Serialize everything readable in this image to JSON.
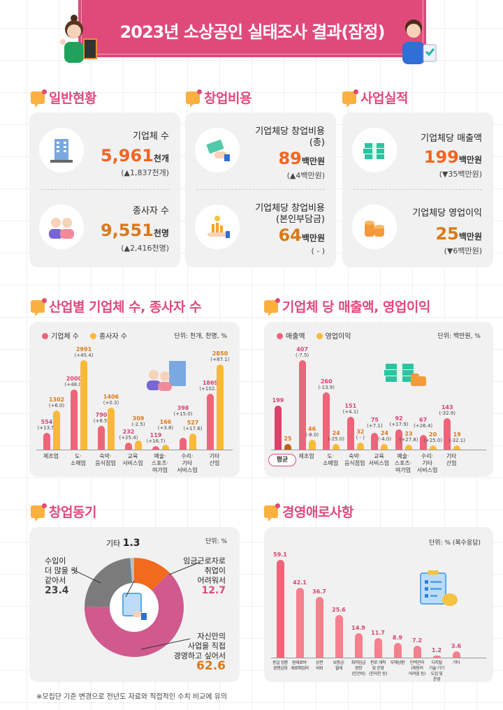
{
  "header": {
    "title": "2023년 소상공인 실태조사 결과(잠정)"
  },
  "colors": {
    "brand": "#e04a7a",
    "accent_orange": "#f26522",
    "accent_dark_orange": "#d9791a",
    "bar_pink": "#f0647a",
    "bar_yellow": "#fbb93a"
  },
  "general": {
    "title": "일반현황",
    "items": [
      {
        "label": "기업체 수",
        "value": "5,961",
        "unit": "천개",
        "change": "(▲1,837천개)",
        "icon": "office-building-icon"
      },
      {
        "label": "종사자 수",
        "value": "9,551",
        "unit": "천명",
        "change": "(▲2,416천명)",
        "icon": "people-icon"
      }
    ]
  },
  "startup_cost": {
    "title": "창업비용",
    "items": [
      {
        "label": "기업체당 창업비용\n(총)",
        "value": "89",
        "unit": "백만원",
        "change": "(▲4백만원)",
        "icon": "money-hand-icon"
      },
      {
        "label": "기업체당 창업비용\n(본인부담금)",
        "value": "64",
        "unit": "백만원",
        "change": "( - )",
        "icon": "coins-hand-icon"
      }
    ]
  },
  "performance": {
    "title": "사업실적",
    "items": [
      {
        "label": "기업체당 매출액",
        "value": "199",
        "unit": "백만원",
        "change": "(▼35백만원)",
        "icon": "cash-stack-icon"
      },
      {
        "label": "기업체당 영업이익",
        "value": "25",
        "unit": "백만원",
        "change": "(▼6백만원)",
        "icon": "coin-stack-icon"
      }
    ]
  },
  "chart_data": [
    {
      "type": "bar",
      "title": "산업별 기업체 수, 종사자 수",
      "unit_note": "단위: 천개, 천명, %",
      "legend_position": "top-left",
      "categories": [
        "제조업",
        "도·\n소매업",
        "숙박·\n음식점업",
        "교육\n서비스업",
        "예술·\n스포츠·\n여가업",
        "수리·\n기타\n서비스업",
        "기타\n산업"
      ],
      "series": [
        {
          "name": "기업체 수",
          "color": "#f0647a",
          "values": [
            554,
            2000,
            790,
            232,
            119,
            398,
            1869
          ],
          "changes": [
            "(+13.5)",
            "(+48.0)",
            "(+8.5)",
            "(+25.4)",
            "(+16.7)",
            "(+15.0)",
            "(+102.3)"
          ]
        },
        {
          "name": "종사자 수",
          "color": "#fbb93a",
          "values": [
            1302,
            2991,
            1406,
            309,
            166,
            527,
            2850
          ],
          "changes": [
            "(+6.0)",
            "(+45.4)",
            "(+0.3)",
            "(-2.5)",
            "(+3.8)",
            "(+17.6)",
            "(+87.1)"
          ]
        }
      ]
    },
    {
      "type": "bar",
      "title": "기업체 당 매출액, 영업이익",
      "unit_note": "단위: 백만원, %",
      "legend_position": "top-left",
      "categories": [
        "평균",
        "제조업",
        "도·\n소매업",
        "숙박·\n음식점업",
        "교육\n서비스업",
        "예술·\n스포츠·\n여가업",
        "수리·\n기타\n서비스업",
        "기타\n산업"
      ],
      "series": [
        {
          "name": "매출액",
          "color": "#f0647a",
          "values": [
            199,
            407,
            260,
            151,
            75,
            92,
            67,
            143
          ],
          "changes": [
            "",
            "(-7.5)",
            "(-13.9)",
            "(+4.1)",
            "(+7.1)",
            "(+17.9)",
            "(+26.4)",
            "(-32.9)"
          ]
        },
        {
          "name": "영업이익",
          "color": "#fbb93a",
          "values": [
            25,
            46,
            24,
            32,
            24,
            23,
            20,
            19
          ],
          "changes": [
            "",
            "(-8.0)",
            "(-25.0)",
            "( - )",
            "(-4.0)",
            "(+27.8)",
            "(+25.0)",
            "(-32.1)"
          ]
        }
      ]
    },
    {
      "type": "pie",
      "title": "창업동기",
      "unit_note": "단위: %",
      "slices": [
        {
          "label": "임금근로자로\n취업이\n어려워서",
          "value": 12.7,
          "color": "#f26a1b"
        },
        {
          "label": "자신만의\n사업을 직접\n경영하고 싶어서",
          "value": 62.6,
          "color": "#d05a8e"
        },
        {
          "label": "수입이\n더 많을 것\n같아서",
          "value": 23.4,
          "color": "#7b7b7b"
        },
        {
          "label": "기타",
          "value": 1.3,
          "color": "#bdbdbd"
        }
      ]
    },
    {
      "type": "bar",
      "title": "경영애로사항",
      "unit_note": "단위: % (복수응답)",
      "categories": [
        "동일 업종\n경쟁심화",
        "원재료비·\n재료매입비",
        "상권\n쇠퇴",
        "보증금·\n월세",
        "최저임금\n영향\n(인건비)",
        "판로 개척\n및 운영\n(온라인 등)",
        "부채상환",
        "인력관리\n(채용의\n어려움 등)",
        "디지털\n기술·기기\n도입 및\n운영",
        "기타"
      ],
      "values": [
        59.1,
        42.1,
        36.7,
        25.6,
        14.9,
        11.7,
        8.9,
        7.2,
        1.2,
        3.6
      ],
      "color": "#f7808e"
    }
  ],
  "footnote": "※모집단 기준 변경으로 전년도 자료와 직접적인 수치 비교에 유의"
}
